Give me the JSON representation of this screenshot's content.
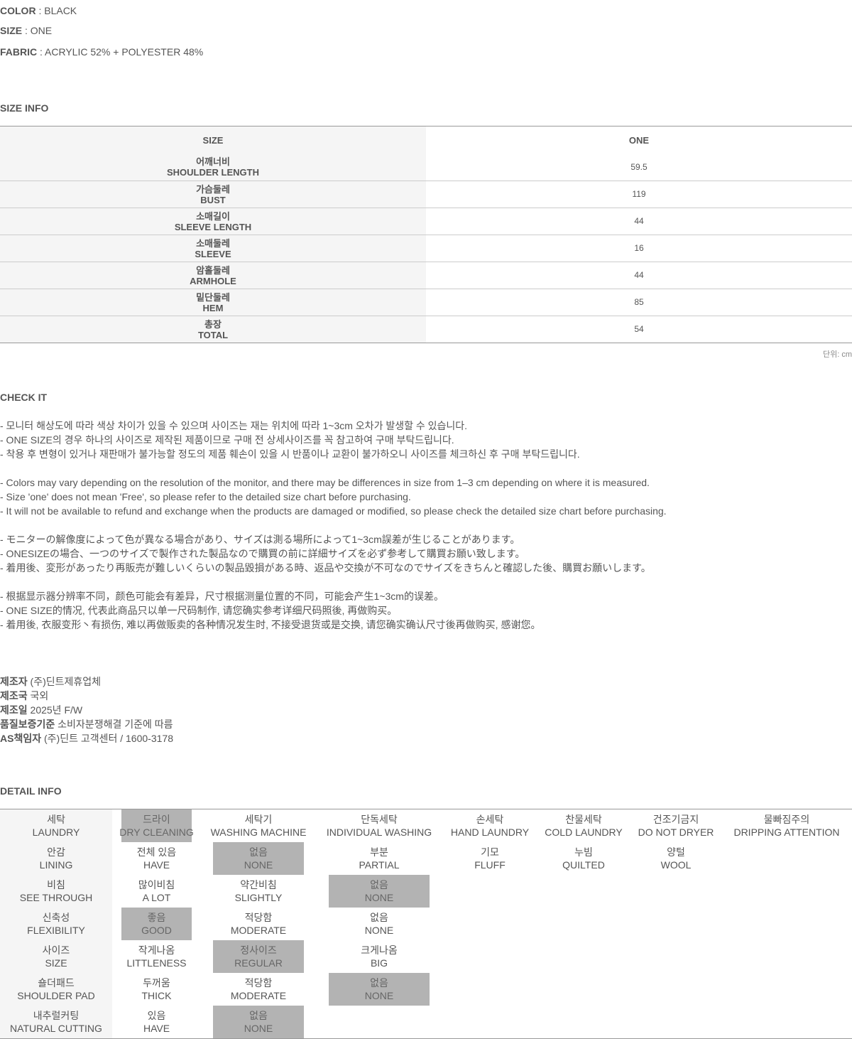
{
  "specs": [
    {
      "label": "COLOR",
      "value": " : BLACK"
    },
    {
      "label": "SIZE",
      "value": " : ONE"
    },
    {
      "label": "FABRIC",
      "value": " : ACRYLIC 52% + POLYESTER 48%"
    }
  ],
  "size_info": {
    "title": "SIZE INFO",
    "header": [
      "SIZE",
      "ONE"
    ],
    "rows": [
      {
        "ko": "어깨너비",
        "en": "SHOULDER LENGTH",
        "value": "59.5"
      },
      {
        "ko": "가슴둘레",
        "en": "BUST",
        "value": "119"
      },
      {
        "ko": "소매길이",
        "en": "SLEEVE LENGTH",
        "value": "44"
      },
      {
        "ko": "소매둘레",
        "en": "SLEEVE",
        "value": "16"
      },
      {
        "ko": "암홀둘레",
        "en": "ARMHOLE",
        "value": "44"
      },
      {
        "ko": "밑단둘레",
        "en": "HEM",
        "value": "85"
      },
      {
        "ko": "총장",
        "en": "TOTAL",
        "value": "54"
      }
    ],
    "unit": "단위: cm"
  },
  "check_it": {
    "title": "CHECK IT",
    "lines": [
      "- 모니터 해상도에 따라 색상 차이가 있을 수 있으며 사이즈는 재는 위치에 따라 1~3cm 오차가 발생할 수 있습니다.",
      "- ONE SIZE의 경우 하나의 사이즈로 제작된 제품이므로 구매 전 상세사이즈를 꼭 참고하여 구매 부탁드립니다.",
      "- 착용 후 변형이 있거나 재판매가 불가능할 정도의 제품 훼손이 있을 시 반품이나 교환이 불가하오니 사이즈를 체크하신 후 구매 부탁드립니다.",
      "- Colors may vary depending on the resolution of the monitor, and there may be differences in size from 1–3 cm depending on where it is measured.",
      "- Size 'one' does not mean 'Free', so please refer to the detailed size chart before purchasing.",
      "- It will not be available to refund and exchange when the products are damaged or modified, so please check the detailed size chart before purchasing.",
      "- モニターの解像度によって色が異なる場合があり、サイズは測る場所によって1~3cm誤差が生じることがあります。",
      "- ONESIZEの場合、一つのサイズで製作された製品なので購買の前に詳細サイズを必ず参考して購買お願い致します。",
      "- 着用後、変形があったり再販売が難しいくらいの製品毀損がある時、返品や交換が不可なのでサイズをきちんと確認した後、購買お願いします。",
      "- 根据显示器分辨率不同，颜色可能会有差异，尺寸根据测量位置的不同，可能会产生1~3cm的误差。",
      "- ONE SIZE的情况, 代表此商品只以单一尺码制作, 请您确实参考详细尺码照後, 再做购买。",
      "- 着用後, 衣服变形丶有损伤, 难以再做贩卖的各种情况发生时, 不接受退货或是交换, 请您确实确认尺寸後再做购买, 感谢您。"
    ]
  },
  "manufacturer": [
    {
      "label": "제조자",
      "value": " (주)딘트제휴업체"
    },
    {
      "label": "제조국",
      "value": " 국외"
    },
    {
      "label": "제조일",
      "value": " 2025년 F/W"
    },
    {
      "label": "품질보증기준",
      "value": " 소비자분쟁해결 기준에 따름"
    },
    {
      "label": "AS책임자",
      "value": " (주)딘트 고객센터 / 1600-3178"
    }
  ],
  "detail_info": {
    "title": "DETAIL INFO",
    "highlight_color": "#b3b3b3",
    "rows": [
      {
        "label": {
          "ko": "세탁",
          "en": "LAUNDRY"
        },
        "options": [
          {
            "ko": "드라이",
            "en": "DRY CLEANING",
            "selected": true
          },
          {
            "ko": "세탁기",
            "en": "WASHING MACHINE",
            "selected": false
          },
          {
            "ko": "단독세탁",
            "en": "INDIVIDUAL WASHING",
            "selected": false
          },
          {
            "ko": "손세탁",
            "en": "HAND LAUNDRY",
            "selected": false
          },
          {
            "ko": "찬물세탁",
            "en": "COLD LAUNDRY",
            "selected": false
          },
          {
            "ko": "건조기금지",
            "en": "DO NOT DRYER",
            "selected": false
          },
          {
            "ko": "물빠짐주의",
            "en": "DRIPPING ATTENTION",
            "selected": false
          }
        ]
      },
      {
        "label": {
          "ko": "안감",
          "en": "LINING"
        },
        "options": [
          {
            "ko": "전체 있음",
            "en": "HAVE",
            "selected": false
          },
          {
            "ko": "없음",
            "en": "NONE",
            "selected": true
          },
          {
            "ko": "부분",
            "en": "PARTIAL",
            "selected": false
          },
          {
            "ko": "기모",
            "en": "FLUFF",
            "selected": false
          },
          {
            "ko": "누빔",
            "en": "QUILTED",
            "selected": false
          },
          {
            "ko": "양털",
            "en": "WOOL",
            "selected": false
          }
        ]
      },
      {
        "label": {
          "ko": "비침",
          "en": "SEE THROUGH"
        },
        "options": [
          {
            "ko": "많이비침",
            "en": "A LOT",
            "selected": false
          },
          {
            "ko": "약간비침",
            "en": "SLIGHTLY",
            "selected": false
          },
          {
            "ko": "없음",
            "en": "NONE",
            "selected": true
          }
        ]
      },
      {
        "label": {
          "ko": "신축성",
          "en": "FLEXIBILITY"
        },
        "options": [
          {
            "ko": "좋음",
            "en": "GOOD",
            "selected": true
          },
          {
            "ko": "적당함",
            "en": "MODERATE",
            "selected": false
          },
          {
            "ko": "없음",
            "en": "NONE",
            "selected": false
          }
        ]
      },
      {
        "label": {
          "ko": "사이즈",
          "en": "SIZE"
        },
        "options": [
          {
            "ko": "작게나옴",
            "en": "LITTLENESS",
            "selected": false
          },
          {
            "ko": "정사이즈",
            "en": "REGULAR",
            "selected": true
          },
          {
            "ko": "크게나옴",
            "en": "BIG",
            "selected": false
          }
        ]
      },
      {
        "label": {
          "ko": "숄더패드",
          "en": "SHOULDER PAD"
        },
        "options": [
          {
            "ko": "두꺼움",
            "en": "THICK",
            "selected": false
          },
          {
            "ko": "적당함",
            "en": "MODERATE",
            "selected": false
          },
          {
            "ko": "없음",
            "en": "NONE",
            "selected": true
          }
        ]
      },
      {
        "label": {
          "ko": "내추럴커팅",
          "en": "NATURAL CUTTING"
        },
        "options": [
          {
            "ko": "있음",
            "en": "HAVE",
            "selected": false
          },
          {
            "ko": "없음",
            "en": "NONE",
            "selected": true
          }
        ]
      }
    ]
  }
}
